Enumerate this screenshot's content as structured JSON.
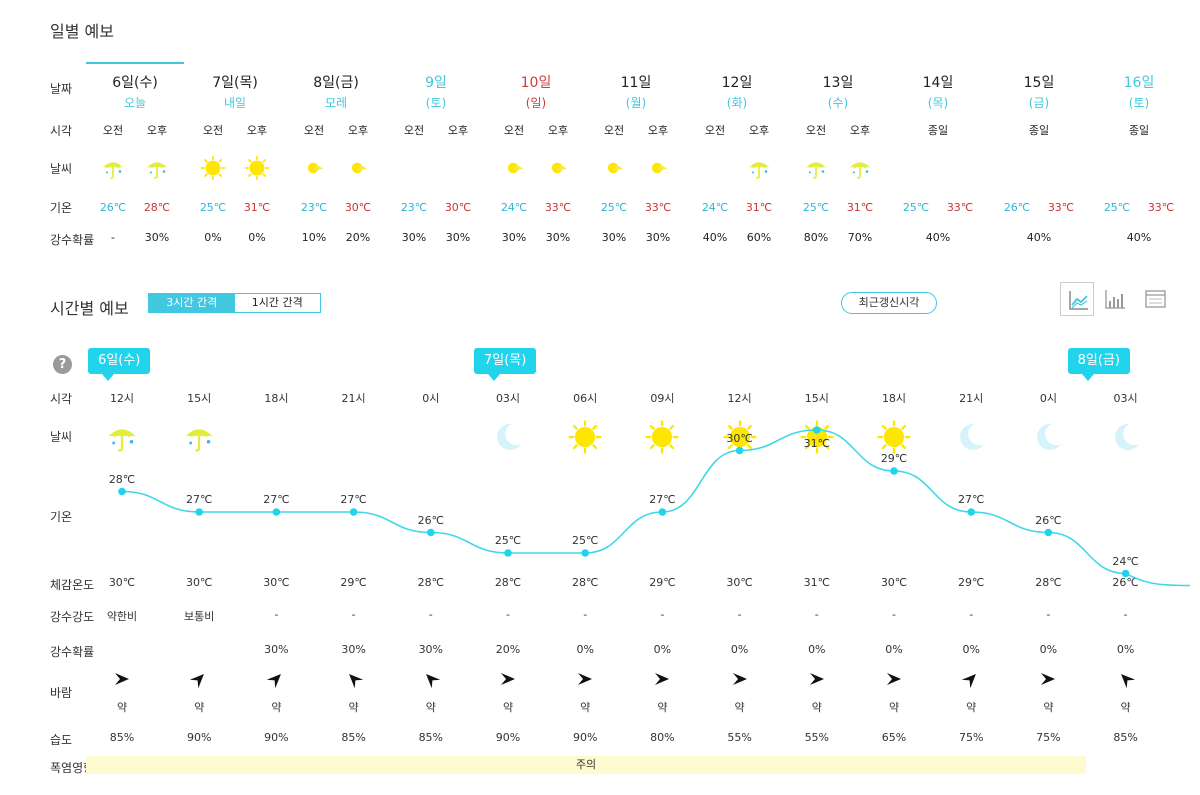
{
  "daily": {
    "title": "일별 예보",
    "labels": {
      "date": "날짜",
      "time": "시각",
      "weather": "날씨",
      "temp": "기온",
      "precip": "강수확률"
    },
    "days": [
      {
        "day": "6일(수)",
        "sub": "오늘",
        "type": "today",
        "halves": [
          {
            "time": "오전",
            "icon": "umbrella-icon",
            "temp": "26℃",
            "precip": "-"
          },
          {
            "time": "오후",
            "icon": "umbrella-icon",
            "temp": "28℃",
            "precip": "30%"
          }
        ]
      },
      {
        "day": "7일(목)",
        "sub": "내일",
        "type": "weekday",
        "halves": [
          {
            "time": "오전",
            "icon": "sun-icon",
            "temp": "25℃",
            "precip": "0%"
          },
          {
            "time": "오후",
            "icon": "sun-icon",
            "temp": "31℃",
            "precip": "0%"
          }
        ]
      },
      {
        "day": "8일(금)",
        "sub": "모레",
        "type": "weekday",
        "halves": [
          {
            "time": "오전",
            "icon": "partly-sunny-icon",
            "temp": "23℃",
            "precip": "10%"
          },
          {
            "time": "오후",
            "icon": "partly-sunny-icon",
            "temp": "30℃",
            "precip": "20%"
          }
        ]
      },
      {
        "day": "9일",
        "sub": "(토)",
        "type": "sat",
        "halves": [
          {
            "time": "오전",
            "icon": "",
            "temp": "23℃",
            "precip": "30%"
          },
          {
            "time": "오후",
            "icon": "",
            "temp": "30℃",
            "precip": "30%"
          }
        ]
      },
      {
        "day": "10일",
        "sub": "(일)",
        "type": "sun",
        "halves": [
          {
            "time": "오전",
            "icon": "partly-sunny-icon",
            "temp": "24℃",
            "precip": "30%"
          },
          {
            "time": "오후",
            "icon": "partly-sunny-icon",
            "temp": "33℃",
            "precip": "30%"
          }
        ]
      },
      {
        "day": "11일",
        "sub": "(월)",
        "type": "weekday",
        "halves": [
          {
            "time": "오전",
            "icon": "partly-sunny-icon",
            "temp": "25℃",
            "precip": "30%"
          },
          {
            "time": "오후",
            "icon": "partly-sunny-icon",
            "temp": "33℃",
            "precip": "30%"
          }
        ]
      },
      {
        "day": "12일",
        "sub": "(화)",
        "type": "weekday",
        "halves": [
          {
            "time": "오전",
            "icon": "",
            "temp": "24℃",
            "precip": "40%"
          },
          {
            "time": "오후",
            "icon": "umbrella-icon",
            "temp": "31℃",
            "precip": "60%"
          }
        ]
      },
      {
        "day": "13일",
        "sub": "(수)",
        "type": "weekday",
        "halves": [
          {
            "time": "오전",
            "icon": "umbrella-icon",
            "temp": "25℃",
            "precip": "80%"
          },
          {
            "time": "오후",
            "icon": "umbrella-icon",
            "temp": "31℃",
            "precip": "70%"
          }
        ]
      },
      {
        "day": "14일",
        "sub": "(목)",
        "type": "weekday",
        "allday": "종일",
        "tmin": "25℃",
        "tmax": "33℃",
        "precip": "40%"
      },
      {
        "day": "15일",
        "sub": "(금)",
        "type": "weekday",
        "allday": "종일",
        "tmin": "26℃",
        "tmax": "33℃",
        "precip": "40%"
      },
      {
        "day": "16일",
        "sub": "(토)",
        "type": "sat",
        "allday": "종일",
        "tmin": "25℃",
        "tmax": "33℃",
        "precip": "40%"
      }
    ]
  },
  "hourly": {
    "title": "시간별 예보",
    "interval_options": [
      "3시간 간격",
      "1시간 간격"
    ],
    "interval_selected": "3시간 간격",
    "recent_button": "최근갱신시각",
    "view_modes": [
      "line-chart-icon",
      "bar-chart-icon",
      "table-icon"
    ],
    "help": "?",
    "date_tags": [
      {
        "label": "6일(수)",
        "index": 0
      },
      {
        "label": "7일(목)",
        "index": 5
      },
      {
        "label": "8일(금)",
        "index": 13
      }
    ],
    "labels": {
      "time": "시각",
      "weather": "날씨",
      "temp": "기온",
      "feels": "체감온도",
      "intensity": "강수강도",
      "precip": "강수확률",
      "wind": "바람",
      "humidity": "습도",
      "heat": "폭염영향"
    },
    "heat_value": "주의",
    "hours": [
      {
        "time": "12시",
        "icon": "umbrella-icon",
        "temp": 28,
        "temp_label": "28℃",
        "feels": "30℃",
        "intensity": "약한비",
        "precip": "",
        "wind_dir": 180,
        "wind": "약",
        "humidity": "85%"
      },
      {
        "time": "15시",
        "icon": "umbrella-icon",
        "temp": 27,
        "temp_label": "27℃",
        "feels": "30℃",
        "intensity": "보통비",
        "precip": "",
        "wind_dir": 135,
        "wind": "약",
        "humidity": "90%"
      },
      {
        "time": "18시",
        "icon": "",
        "temp": 27,
        "temp_label": "27℃",
        "feels": "30℃",
        "intensity": "-",
        "precip": "30%",
        "wind_dir": 135,
        "wind": "약",
        "humidity": "90%"
      },
      {
        "time": "21시",
        "icon": "",
        "temp": 27,
        "temp_label": "27℃",
        "feels": "29℃",
        "intensity": "-",
        "precip": "30%",
        "wind_dir": 45,
        "wind": "약",
        "humidity": "85%"
      },
      {
        "time": "0시",
        "icon": "",
        "temp": 26,
        "temp_label": "26℃",
        "feels": "28℃",
        "intensity": "-",
        "precip": "30%",
        "wind_dir": 45,
        "wind": "약",
        "humidity": "85%"
      },
      {
        "time": "03시",
        "icon": "moon-icon",
        "temp": 25,
        "temp_label": "25℃",
        "feels": "28℃",
        "intensity": "-",
        "precip": "20%",
        "wind_dir": 180,
        "wind": "약",
        "humidity": "90%"
      },
      {
        "time": "06시",
        "icon": "sun-icon",
        "temp": 25,
        "temp_label": "25℃",
        "feels": "28℃",
        "intensity": "-",
        "precip": "0%",
        "wind_dir": 180,
        "wind": "약",
        "humidity": "90%"
      },
      {
        "time": "09시",
        "icon": "sun-icon",
        "temp": 27,
        "temp_label": "27℃",
        "feels": "29℃",
        "intensity": "-",
        "precip": "0%",
        "wind_dir": 180,
        "wind": "약",
        "humidity": "80%"
      },
      {
        "time": "12시",
        "icon": "sun-icon",
        "temp": 30,
        "temp_label": "30℃",
        "feels": "30℃",
        "intensity": "-",
        "precip": "0%",
        "wind_dir": 180,
        "wind": "약",
        "humidity": "55%"
      },
      {
        "time": "15시",
        "icon": "sun-icon",
        "temp": 31,
        "temp_label": "31℃",
        "feels": "31℃",
        "intensity": "-",
        "precip": "0%",
        "wind_dir": 180,
        "wind": "약",
        "humidity": "55%"
      },
      {
        "time": "18시",
        "icon": "sun-icon",
        "temp": 29,
        "temp_label": "29℃",
        "feels": "30℃",
        "intensity": "-",
        "precip": "0%",
        "wind_dir": 180,
        "wind": "약",
        "humidity": "65%"
      },
      {
        "time": "21시",
        "icon": "moon-icon",
        "temp": 27,
        "temp_label": "27℃",
        "feels": "29℃",
        "intensity": "-",
        "precip": "0%",
        "wind_dir": 135,
        "wind": "약",
        "humidity": "75%"
      },
      {
        "time": "0시",
        "icon": "moon-icon",
        "temp": 26,
        "temp_label": "26℃",
        "feels": "28℃",
        "intensity": "-",
        "precip": "0%",
        "wind_dir": 180,
        "wind": "약",
        "humidity": "75%"
      },
      {
        "time": "03시",
        "icon": "moon-icon",
        "temp": 24,
        "temp_label": "24℃",
        "feels": "26℃",
        "intensity": "-",
        "precip": "0%",
        "wind_dir": 45,
        "wind": "약",
        "humidity": "85%"
      }
    ]
  },
  "colors": {
    "accent": "#22d3ec",
    "line": "#3fd8ea",
    "sun": "#ffe600",
    "moon": "#d6f3fb",
    "umbrella": "#e2ee3c",
    "min": "#2fb6d2",
    "max": "#cc3333",
    "heat": "#fdfbcf"
  }
}
